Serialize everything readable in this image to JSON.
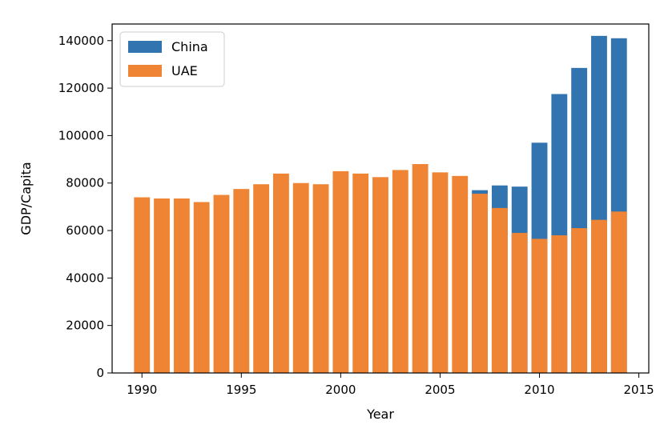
{
  "chart_data": {
    "type": "bar",
    "stacked": false,
    "xlabel": "Year",
    "ylabel": "GDP/Capita",
    "xlim": [
      1988.5,
      2015.5
    ],
    "ylim": [
      0,
      147000
    ],
    "xticks": [
      1990,
      1995,
      2000,
      2005,
      2010,
      2015
    ],
    "yticks": [
      0,
      20000,
      40000,
      60000,
      80000,
      100000,
      120000,
      140000
    ],
    "grid": false,
    "legend_position": "top-left",
    "x": [
      1990,
      1991,
      1992,
      1993,
      1994,
      1995,
      1996,
      1997,
      1998,
      1999,
      2000,
      2001,
      2002,
      2003,
      2004,
      2005,
      2006,
      2007,
      2008,
      2009,
      2010,
      2011,
      2012,
      2013,
      2014
    ],
    "series": [
      {
        "name": "China",
        "color": "#3274b0",
        "values": [
          null,
          null,
          null,
          null,
          null,
          null,
          null,
          null,
          null,
          null,
          null,
          null,
          null,
          null,
          null,
          null,
          null,
          77000,
          79000,
          78500,
          97000,
          117500,
          128500,
          142000,
          141000
        ]
      },
      {
        "name": "UAE",
        "color": "#ef8534",
        "values": [
          74000,
          73500,
          73500,
          72000,
          75000,
          77500,
          79500,
          84000,
          80000,
          79500,
          85000,
          84000,
          82500,
          85500,
          88000,
          84500,
          83000,
          75500,
          69500,
          59000,
          56500,
          58000,
          61000,
          64500,
          68000
        ]
      }
    ]
  }
}
